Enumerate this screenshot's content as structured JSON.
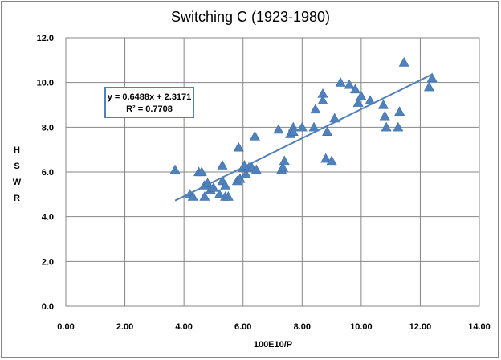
{
  "chart_data": {
    "type": "scatter",
    "title": "Switching C (1923-1980)",
    "xlabel": "100E10/P",
    "ylabel": "HSWR",
    "xlim": [
      0,
      14
    ],
    "ylim": [
      0,
      12
    ],
    "x_ticks": [
      "0.00",
      "2.00",
      "4.00",
      "6.00",
      "8.00",
      "10.00",
      "12.00",
      "14.00"
    ],
    "y_ticks": [
      "0.0",
      "2.0",
      "4.0",
      "6.0",
      "8.0",
      "10.0",
      "12.0"
    ],
    "grid": true,
    "marker": "triangle",
    "color": "#4f81bd",
    "trendline": {
      "slope": 0.6488,
      "intercept": 2.3171,
      "x_range": [
        3.7,
        12.4
      ],
      "equation": "y = 0.6488x + 2.3171",
      "r_squared": "R² = 0.7708"
    },
    "points": [
      {
        "x": 3.7,
        "y": 6.1
      },
      {
        "x": 4.2,
        "y": 5.0
      },
      {
        "x": 4.3,
        "y": 4.9
      },
      {
        "x": 4.5,
        "y": 6.0
      },
      {
        "x": 4.6,
        "y": 6.0
      },
      {
        "x": 4.7,
        "y": 5.4
      },
      {
        "x": 4.7,
        "y": 4.9
      },
      {
        "x": 4.8,
        "y": 5.5
      },
      {
        "x": 4.9,
        "y": 5.2
      },
      {
        "x": 5.0,
        "y": 5.3
      },
      {
        "x": 5.2,
        "y": 5.0
      },
      {
        "x": 5.3,
        "y": 6.3
      },
      {
        "x": 5.3,
        "y": 5.6
      },
      {
        "x": 5.4,
        "y": 4.9
      },
      {
        "x": 5.4,
        "y": 5.4
      },
      {
        "x": 5.5,
        "y": 4.9
      },
      {
        "x": 5.8,
        "y": 5.6
      },
      {
        "x": 5.85,
        "y": 7.1
      },
      {
        "x": 5.9,
        "y": 5.7
      },
      {
        "x": 6.0,
        "y": 6.2
      },
      {
        "x": 6.05,
        "y": 6.3
      },
      {
        "x": 6.1,
        "y": 5.9
      },
      {
        "x": 6.2,
        "y": 6.2
      },
      {
        "x": 6.3,
        "y": 6.2
      },
      {
        "x": 6.4,
        "y": 7.6
      },
      {
        "x": 6.45,
        "y": 6.1
      },
      {
        "x": 7.2,
        "y": 7.9
      },
      {
        "x": 7.3,
        "y": 6.1
      },
      {
        "x": 7.35,
        "y": 6.2
      },
      {
        "x": 7.4,
        "y": 6.5
      },
      {
        "x": 7.6,
        "y": 7.7
      },
      {
        "x": 7.7,
        "y": 8.0
      },
      {
        "x": 7.7,
        "y": 7.8
      },
      {
        "x": 8.0,
        "y": 8.0
      },
      {
        "x": 8.4,
        "y": 8.0
      },
      {
        "x": 8.45,
        "y": 8.8
      },
      {
        "x": 8.7,
        "y": 9.5
      },
      {
        "x": 8.7,
        "y": 9.2
      },
      {
        "x": 8.8,
        "y": 6.6
      },
      {
        "x": 8.85,
        "y": 7.8
      },
      {
        "x": 9.0,
        "y": 6.5
      },
      {
        "x": 9.1,
        "y": 8.4
      },
      {
        "x": 9.3,
        "y": 10.0
      },
      {
        "x": 9.6,
        "y": 9.9
      },
      {
        "x": 9.8,
        "y": 9.7
      },
      {
        "x": 9.9,
        "y": 9.1
      },
      {
        "x": 10.0,
        "y": 9.4
      },
      {
        "x": 10.3,
        "y": 9.2
      },
      {
        "x": 10.75,
        "y": 9.0
      },
      {
        "x": 10.8,
        "y": 8.5
      },
      {
        "x": 10.85,
        "y": 8.0
      },
      {
        "x": 11.25,
        "y": 8.0
      },
      {
        "x": 11.3,
        "y": 8.7
      },
      {
        "x": 11.45,
        "y": 10.9
      },
      {
        "x": 12.3,
        "y": 9.8
      },
      {
        "x": 12.4,
        "y": 10.2
      }
    ]
  }
}
